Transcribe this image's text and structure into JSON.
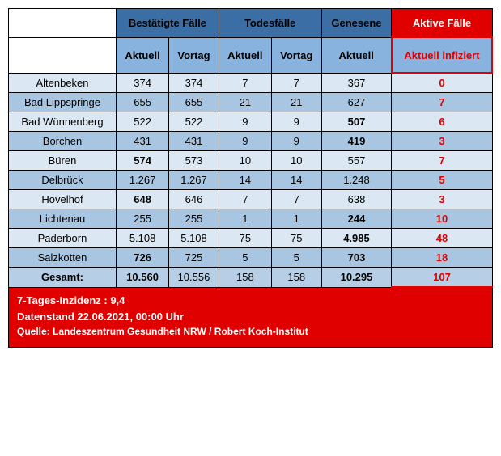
{
  "headers": {
    "group1": "Bestätigte Fälle",
    "group2": "Todesfälle",
    "group3": "Genesene",
    "group4": "Aktive Fälle",
    "sub_aktuell": "Aktuell",
    "sub_vortag": "Vortag",
    "sub_aktuell2": "Aktuell",
    "sub_vortag2": "Vortag",
    "sub_aktuell3": "Aktuell",
    "sub_aktiv": "Aktuell infiziert"
  },
  "rows": [
    {
      "label": "Altenbeken",
      "c1": "374",
      "c2": "374",
      "c3": "7",
      "c4": "7",
      "c5": "367",
      "c6": "0",
      "c1b": false,
      "c5b": false
    },
    {
      "label": "Bad Lippspringe",
      "c1": "655",
      "c2": "655",
      "c3": "21",
      "c4": "21",
      "c5": "627",
      "c6": "7",
      "c1b": false,
      "c5b": false
    },
    {
      "label": "Bad Wünnenberg",
      "c1": "522",
      "c2": "522",
      "c3": "9",
      "c4": "9",
      "c5": "507",
      "c6": "6",
      "c1b": false,
      "c5b": true
    },
    {
      "label": "Borchen",
      "c1": "431",
      "c2": "431",
      "c3": "9",
      "c4": "9",
      "c5": "419",
      "c6": "3",
      "c1b": false,
      "c5b": true
    },
    {
      "label": "Büren",
      "c1": "574",
      "c2": "573",
      "c3": "10",
      "c4": "10",
      "c5": "557",
      "c6": "7",
      "c1b": true,
      "c5b": false
    },
    {
      "label": "Delbrück",
      "c1": "1.267",
      "c2": "1.267",
      "c3": "14",
      "c4": "14",
      "c5": "1.248",
      "c6": "5",
      "c1b": false,
      "c5b": false
    },
    {
      "label": "Hövelhof",
      "c1": "648",
      "c2": "646",
      "c3": "7",
      "c4": "7",
      "c5": "638",
      "c6": "3",
      "c1b": true,
      "c5b": false
    },
    {
      "label": "Lichtenau",
      "c1": "255",
      "c2": "255",
      "c3": "1",
      "c4": "1",
      "c5": "244",
      "c6": "10",
      "c1b": false,
      "c5b": true
    },
    {
      "label": "Paderborn",
      "c1": "5.108",
      "c2": "5.108",
      "c3": "75",
      "c4": "75",
      "c5": "4.985",
      "c6": "48",
      "c1b": false,
      "c5b": true
    },
    {
      "label": "Salzkotten",
      "c1": "726",
      "c2": "725",
      "c3": "5",
      "c4": "5",
      "c5": "703",
      "c6": "18",
      "c1b": true,
      "c5b": true
    }
  ],
  "total": {
    "label": "Gesamt:",
    "c1": "10.560",
    "c2": "10.556",
    "c3": "158",
    "c4": "158",
    "c5": "10.295",
    "c6": "107"
  },
  "footer": {
    "line1": "7-Tages-Inzidenz : 9,4",
    "line2": "Datenstand 22.06.2021, 00:00 Uhr",
    "line3": "Quelle: Landeszentrum Gesundheit NRW / Robert Koch-Institut"
  },
  "style": {
    "header_bg": "#3a6ea5",
    "subheader_bg": "#87b3de",
    "row_light": "#dbe8f4",
    "row_dark": "#a8c6e2",
    "active_red": "#e00000",
    "font_size": 13
  }
}
